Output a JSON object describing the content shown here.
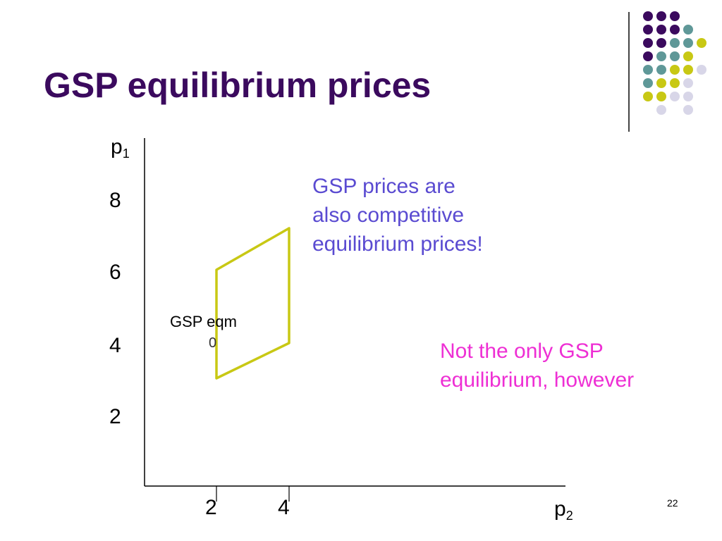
{
  "slide": {
    "title": "GSP equilibrium prices",
    "page_number": "22"
  },
  "axes": {
    "y_label_main": "p",
    "y_label_sub": "1",
    "x_label_main": "p",
    "x_label_sub": "2",
    "y_ticks": [
      "8",
      "6",
      "4",
      "2"
    ],
    "x_ticks": [
      "2",
      "4"
    ]
  },
  "annotations": {
    "eqm_label": "GSP eqm",
    "eqm_marker": "0",
    "blue_note_lines": [
      "GSP prices are",
      "also competitive",
      "equilibrium prices!"
    ],
    "pink_note_lines": [
      "Not the only GSP",
      "equilibrium, however"
    ]
  },
  "colors": {
    "title": "#3b0a5e",
    "region": "#c8c814",
    "blue_note": "#5a4bd1",
    "pink_note": "#ee2fd4",
    "dot_purple": "#3b0a5e",
    "dot_teal": "#5f9898",
    "dot_yellow": "#c8c814",
    "dot_lavender": "#d8d6e8"
  },
  "decoration": {
    "dot_grid": [
      [
        "purple",
        "purple",
        "purple",
        "empty",
        "empty"
      ],
      [
        "purple",
        "purple",
        "purple",
        "teal",
        "empty"
      ],
      [
        "purple",
        "purple",
        "teal",
        "teal",
        "yellow"
      ],
      [
        "purple",
        "teal",
        "teal",
        "yellow",
        "empty"
      ],
      [
        "teal",
        "teal",
        "yellow",
        "yellow",
        "lavender"
      ],
      [
        "teal",
        "yellow",
        "yellow",
        "lavender",
        "empty"
      ],
      [
        "yellow",
        "yellow",
        "lavender",
        "lavender",
        "empty"
      ],
      [
        "empty",
        "lavender",
        "empty",
        "lavender",
        "empty"
      ]
    ]
  }
}
